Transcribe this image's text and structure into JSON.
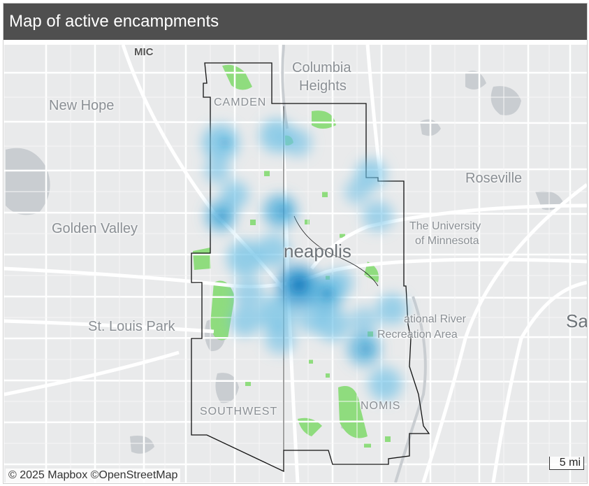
{
  "title": "Map of active encampments",
  "map": {
    "attribution": "© 2025 Mapbox  ©OpenStreetMap",
    "scale_label": "5 mi",
    "place_labels": {
      "mic": "MIC",
      "columbia_heights_1": "Columbia",
      "columbia_heights_2": "Heights",
      "new_hope": "New Hope",
      "camden": "CAMDEN",
      "roseville": "Roseville",
      "golden_valley": "Golden Valley",
      "university_1": "The University",
      "university_2": "of Minnesota",
      "minneapolis": "neapolis",
      "st_louis_park": "St. Louis Park",
      "national_river_1": "ational River",
      "national_river_2": "Recreation Area",
      "southwest": "SOUTHWEST",
      "edge_label": "Sa",
      "nomis": "NOMIS"
    },
    "colors": {
      "background": "#e9eaeb",
      "roads": "#ffffff",
      "parks": "#8fdc7e",
      "water": "#c7cbcf",
      "boundary": "#111111",
      "heat": "#6cc0e6",
      "heat_core": "#0b7bbd"
    }
  }
}
